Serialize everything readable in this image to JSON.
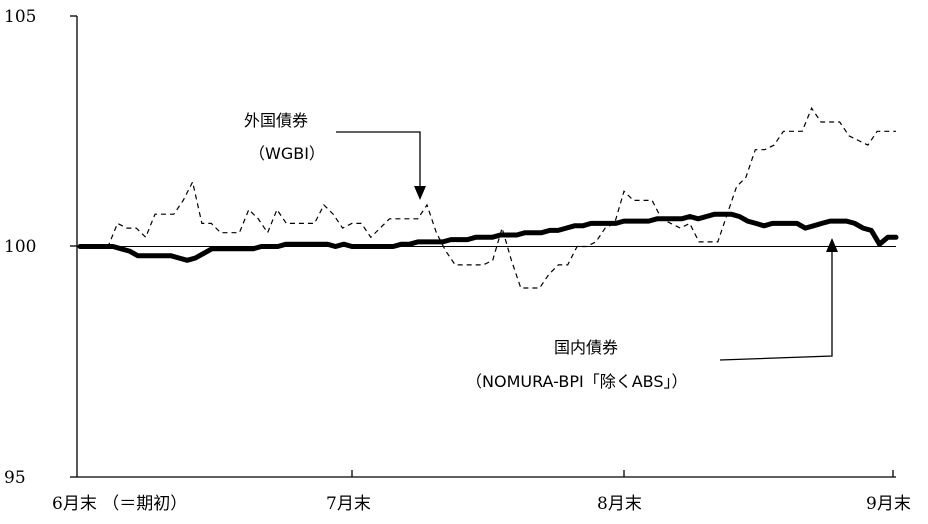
{
  "chart_data": {
    "type": "line",
    "title": "",
    "xlabel": "",
    "ylabel": "",
    "ylim": [
      95,
      105
    ],
    "yticks": [
      "105",
      "100",
      "95"
    ],
    "xticks": [
      "6月末 （＝期初）",
      "7月末",
      "8月末",
      "9月末"
    ],
    "grid": false,
    "reference_line": 100,
    "series": [
      {
        "name": "外国債券 (WGBI)",
        "style": "dashed",
        "color": "#000000",
        "values": [
          100.0,
          100.0,
          100.0,
          100.0,
          100.5,
          100.4,
          100.4,
          100.2,
          100.7,
          100.7,
          100.7,
          101.0,
          101.4,
          100.5,
          100.5,
          100.3,
          100.3,
          100.3,
          100.8,
          100.6,
          100.3,
          100.8,
          100.5,
          100.5,
          100.5,
          100.5,
          100.9,
          100.7,
          100.4,
          100.5,
          100.5,
          100.2,
          100.4,
          100.6,
          100.6,
          100.6,
          100.6,
          100.9,
          100.3,
          99.9,
          99.6,
          99.6,
          99.6,
          99.6,
          99.7,
          100.4,
          99.7,
          99.1,
          99.1,
          99.1,
          99.4,
          99.6,
          99.6,
          100.0,
          100.0,
          100.1,
          100.4,
          100.5,
          101.2,
          101.0,
          101.0,
          101.0,
          100.6,
          100.5,
          100.4,
          100.5,
          100.1,
          100.1,
          100.1,
          100.7,
          101.3,
          101.5,
          102.1,
          102.1,
          102.2,
          102.5,
          102.5,
          102.5,
          103.0,
          102.7,
          102.7,
          102.7,
          102.4,
          102.3,
          102.2,
          102.5,
          102.5,
          102.5
        ]
      },
      {
        "name": "国内債券 (NOMURA-BPI「除くABS」)",
        "style": "solid-thick",
        "color": "#000000",
        "values": [
          100.0,
          100.0,
          100.0,
          100.0,
          100.0,
          99.95,
          99.9,
          99.8,
          99.8,
          99.8,
          99.8,
          99.8,
          99.75,
          99.7,
          99.75,
          99.85,
          99.95,
          99.95,
          99.95,
          99.95,
          99.95,
          99.95,
          100.0,
          100.0,
          100.0,
          100.05,
          100.05,
          100.05,
          100.05,
          100.05,
          100.05,
          100.0,
          100.05,
          100.0,
          100.0,
          100.0,
          100.0,
          100.0,
          100.0,
          100.05,
          100.05,
          100.1,
          100.1,
          100.1,
          100.1,
          100.15,
          100.15,
          100.15,
          100.2,
          100.2,
          100.2,
          100.25,
          100.25,
          100.25,
          100.3,
          100.3,
          100.3,
          100.35,
          100.35,
          100.4,
          100.45,
          100.45,
          100.5,
          100.5,
          100.5,
          100.5,
          100.55,
          100.55,
          100.55,
          100.55,
          100.6,
          100.6,
          100.6,
          100.6,
          100.65,
          100.6,
          100.65,
          100.7,
          100.7,
          100.7,
          100.65,
          100.55,
          100.5,
          100.45,
          100.5,
          100.5,
          100.5,
          100.5,
          100.4,
          100.45,
          100.5,
          100.55,
          100.55,
          100.55,
          100.5,
          100.4,
          100.35,
          100.05,
          100.2,
          100.2
        ]
      }
    ],
    "annotations": [
      {
        "target": "series.0",
        "lines": [
          "外国債券",
          "（WGBI）"
        ]
      },
      {
        "target": "series.1",
        "lines": [
          "国内債券",
          "（NOMURA-BPI「除くABS」）"
        ]
      }
    ]
  }
}
